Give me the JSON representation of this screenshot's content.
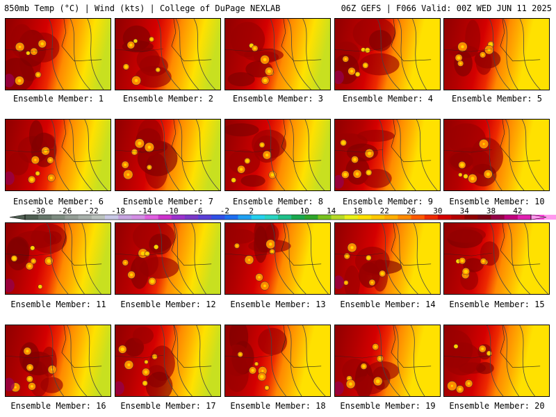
{
  "header": {
    "left": "850mb Temp (°C) | Wind (kts) | College of DuPage NEXLAB",
    "right": "06Z GEFS | F066 Valid: 00Z WED JUN 11 2025"
  },
  "colorbar": {
    "tick_labels": [
      "-30",
      "-26",
      "-22",
      "-18",
      "-14",
      "-10",
      "-6",
      "-2",
      "2",
      "6",
      "10",
      "14",
      "18",
      "22",
      "26",
      "30",
      "34",
      "38",
      "42"
    ],
    "range": [
      -32,
      44
    ],
    "bin_width": 2,
    "colors": [
      "#4f5f52",
      "#66766a",
      "#7d8c80",
      "#949e96",
      "#a7b0aa",
      "#bac2bd",
      "#c8c8e6",
      "#c6a4e0",
      "#d38ee4",
      "#e060e0",
      "#cc33cc",
      "#9a32cd",
      "#7a38c8",
      "#5a3fd6",
      "#3050e6",
      "#1d6ef0",
      "#1fa0f2",
      "#25d0ee",
      "#2ad4c2",
      "#1fc08a",
      "#18a84e",
      "#2ea52a",
      "#77c11e",
      "#b6da28",
      "#e8f018",
      "#ffe100",
      "#ffc800",
      "#ffae00",
      "#ff8a00",
      "#ff5a00",
      "#ee2a00",
      "#d40000",
      "#b40000",
      "#900000",
      "#7a0014",
      "#960048",
      "#c0007c",
      "#e020b0",
      "#ff44dd",
      "#ff99ee"
    ]
  },
  "members": [
    {
      "label": "Ensemble Member: 1"
    },
    {
      "label": "Ensemble Member: 2"
    },
    {
      "label": "Ensemble Member: 3"
    },
    {
      "label": "Ensemble Member: 4"
    },
    {
      "label": "Ensemble Member: 5"
    },
    {
      "label": "Ensemble Member: 6"
    },
    {
      "label": "Ensemble Member: 7"
    },
    {
      "label": "Ensemble Member: 8"
    },
    {
      "label": "Ensemble Member: 9"
    },
    {
      "label": "Ensemble Member: 10"
    },
    {
      "label": "Ensemble Member: 11"
    },
    {
      "label": "Ensemble Member: 12"
    },
    {
      "label": "Ensemble Member: 13"
    },
    {
      "label": "Ensemble Member: 14"
    },
    {
      "label": "Ensemble Member: 15"
    },
    {
      "label": "Ensemble Member: 16"
    },
    {
      "label": "Ensemble Member: 17"
    },
    {
      "label": "Ensemble Member: 18"
    },
    {
      "label": "Ensemble Member: 19"
    },
    {
      "label": "Ensemble Member: 20"
    }
  ]
}
